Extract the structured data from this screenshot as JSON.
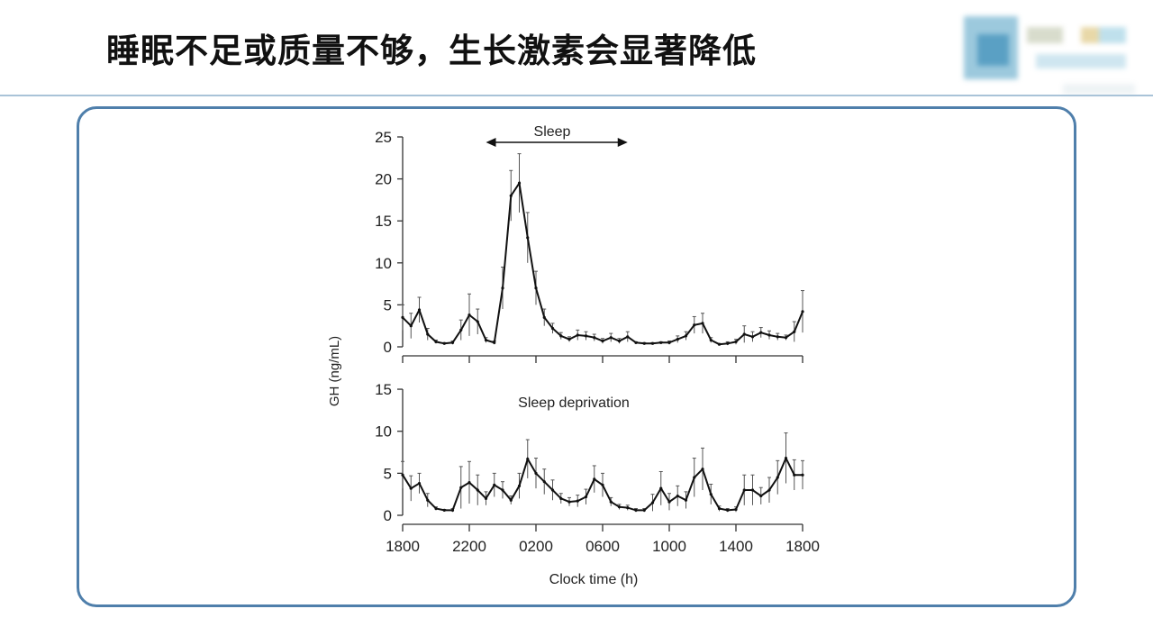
{
  "slide": {
    "title": "睡眠不足或质量不够，生长激素会显著降低"
  },
  "colors": {
    "frame": "#4f7fab",
    "header_line": "#a9c3d8",
    "series": "#111111"
  },
  "chart_data": [
    {
      "type": "line",
      "panel": "top",
      "annotation": "Sleep",
      "annotation_range": [
        "2300",
        "0730"
      ],
      "ylabel": "GH (ng/mL)",
      "ylim": [
        0,
        25
      ],
      "yticks": [
        0,
        5,
        10,
        15,
        20,
        25
      ],
      "xticks": [
        "1800",
        "2200",
        "0200",
        "0600",
        "1000",
        "1400",
        "1800"
      ],
      "error_bars": true,
      "x": [
        "1800",
        "1830",
        "1900",
        "1930",
        "2000",
        "2030",
        "2100",
        "2130",
        "2200",
        "2230",
        "2300",
        "2330",
        "0000",
        "0030",
        "0100",
        "0130",
        "0200",
        "0230",
        "0300",
        "0330",
        "0400",
        "0430",
        "0500",
        "0530",
        "0600",
        "0630",
        "0700",
        "0730",
        "0800",
        "0830",
        "0900",
        "0930",
        "1000",
        "1030",
        "1100",
        "1130",
        "1200",
        "1230",
        "1300",
        "1330",
        "1400",
        "1430",
        "1500",
        "1530",
        "1600",
        "1630",
        "1700",
        "1730",
        "1800"
      ],
      "values": [
        3.5,
        2.5,
        4.4,
        1.5,
        0.6,
        0.4,
        0.5,
        2.0,
        3.8,
        3.0,
        0.8,
        0.5,
        7,
        18,
        19.5,
        13,
        7,
        3.5,
        2.2,
        1.3,
        0.9,
        1.4,
        1.3,
        1.1,
        0.7,
        1.1,
        0.7,
        1.2,
        0.5,
        0.4,
        0.4,
        0.5,
        0.5,
        0.9,
        1.3,
        2.6,
        2.8,
        0.8,
        0.3,
        0.4,
        0.6,
        1.5,
        1.2,
        1.7,
        1.4,
        1.2,
        1.1,
        1.8,
        4.2
      ],
      "sem": [
        1.5,
        1.5,
        1.5,
        0.7,
        0.2,
        0.1,
        0.2,
        1.2,
        2.5,
        1.5,
        0.3,
        0.2,
        2.5,
        3,
        3.5,
        3,
        2,
        1,
        0.6,
        0.4,
        0.3,
        0.6,
        0.5,
        0.4,
        0.3,
        0.5,
        0.3,
        0.6,
        0.1,
        0.1,
        0.1,
        0.1,
        0.2,
        0.4,
        0.5,
        1.0,
        1.2,
        0.3,
        0.1,
        0.2,
        0.3,
        1.0,
        0.6,
        0.6,
        0.5,
        0.4,
        0.3,
        1.2,
        2.5
      ]
    },
    {
      "type": "line",
      "panel": "bottom",
      "annotation": "Sleep deprivation",
      "xlabel": "Clock time (h)",
      "ylim": [
        0,
        15
      ],
      "yticks": [
        0,
        5,
        10,
        15
      ],
      "xticks": [
        "1800",
        "2200",
        "0200",
        "0600",
        "1000",
        "1400",
        "1800"
      ],
      "error_bars": true,
      "x": [
        "1800",
        "1830",
        "1900",
        "1930",
        "2000",
        "2030",
        "2100",
        "2130",
        "2200",
        "2230",
        "2300",
        "2330",
        "0000",
        "0030",
        "0100",
        "0130",
        "0200",
        "0230",
        "0300",
        "0330",
        "0400",
        "0430",
        "0500",
        "0530",
        "0600",
        "0630",
        "0700",
        "0730",
        "0800",
        "0830",
        "0900",
        "0930",
        "1000",
        "1030",
        "1100",
        "1130",
        "1200",
        "1230",
        "1300",
        "1330",
        "1400",
        "1430",
        "1500",
        "1530",
        "1600",
        "1630",
        "1700",
        "1730",
        "1800"
      ],
      "values": [
        4.8,
        3.2,
        3.8,
        1.8,
        0.8,
        0.6,
        0.6,
        3.3,
        3.9,
        3.0,
        2.0,
        3.6,
        3.0,
        1.8,
        3.5,
        6.7,
        5.0,
        4.0,
        3.0,
        2.0,
        1.6,
        1.7,
        2.2,
        4.3,
        3.6,
        1.6,
        1.0,
        0.9,
        0.6,
        0.6,
        1.5,
        3.2,
        1.6,
        2.3,
        1.8,
        4.5,
        5.5,
        2.5,
        0.8,
        0.6,
        0.7,
        3.0,
        3.0,
        2.3,
        3.0,
        4.5,
        6.8,
        4.8,
        4.8
      ],
      "sem": [
        1.6,
        1.5,
        1.2,
        0.8,
        0.2,
        0.1,
        0.2,
        2.5,
        2.5,
        1.8,
        0.8,
        1.4,
        1,
        0.5,
        1.5,
        2.3,
        1.8,
        1.5,
        1.2,
        0.6,
        0.5,
        0.7,
        0.9,
        1.6,
        1.4,
        0.5,
        0.3,
        0.3,
        0.2,
        0.2,
        1.0,
        2.0,
        1.0,
        1.2,
        1.0,
        2.3,
        2.5,
        1.2,
        0.3,
        0.2,
        0.3,
        1.8,
        1.8,
        1.0,
        1.5,
        2.0,
        3.0,
        1.8,
        1.7
      ]
    }
  ]
}
